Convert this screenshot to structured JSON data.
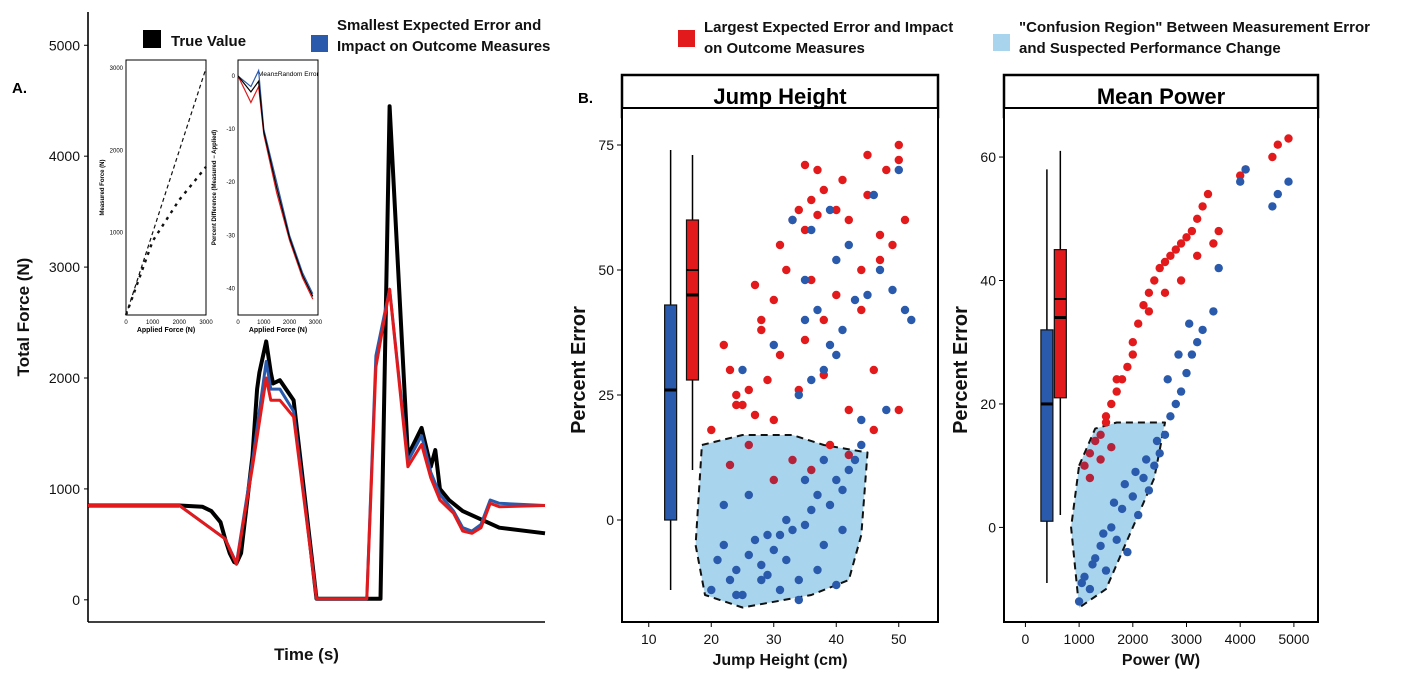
{
  "legend": {
    "items": [
      {
        "label_line1": "True Value",
        "label_line2": "",
        "color": "#000000"
      },
      {
        "label_line1": "Smallest Expected Error and",
        "label_line2": "Impact on Outcome Measures",
        "color": "#2a5aac"
      },
      {
        "label_line1": "Largest Expected Error and Impact",
        "label_line2": "on Outcome Measures",
        "color": "#e31a1c"
      },
      {
        "label_line1": "\"Confusion Region\" Between Measurement Error",
        "label_line2": "and Suspected Performance Change",
        "color": "#a8d4ee"
      }
    ]
  },
  "panel_labels": {
    "a": "A.",
    "b": "B."
  },
  "chart_data": [
    {
      "id": "force-trace",
      "type": "line",
      "xlabel": "Time (s)",
      "ylabel": "Total Force (N)",
      "ylim": [
        -200,
        5300
      ],
      "yticks": [
        0,
        1000,
        2000,
        3000,
        4000,
        5000
      ],
      "series": [
        {
          "color": "#000000",
          "x": [
            0,
            0.12,
            0.2,
            0.25,
            0.27,
            0.29,
            0.3,
            0.31,
            0.32,
            0.325,
            0.335,
            0.34,
            0.36,
            0.37,
            0.375,
            0.39,
            0.4,
            0.405,
            0.42,
            0.45,
            0.5,
            0.505,
            0.51,
            0.52,
            0.53,
            0.54,
            0.55,
            0.56,
            0.57,
            0.58,
            0.6,
            0.62,
            0.64,
            0.66,
            0.7,
            0.73,
            0.75,
            0.76,
            0.77,
            0.79,
            0.82,
            0.9,
            1.0
          ],
          "y": [
            850,
            850,
            850,
            840,
            800,
            700,
            550,
            420,
            340,
            330,
            420,
            600,
            1300,
            1900,
            2050,
            2330,
            2050,
            1950,
            1980,
            1800,
            10,
            10,
            10,
            10,
            10,
            10,
            10,
            10,
            10,
            10,
            10,
            10,
            10,
            4450,
            1300,
            1550,
            1200,
            1350,
            1000,
            900,
            800,
            650,
            600
          ]
        },
        {
          "color": "#2a5aac",
          "x": [
            0,
            0.2,
            0.3,
            0.325,
            0.36,
            0.39,
            0.4,
            0.42,
            0.45,
            0.5,
            0.61,
            0.63,
            0.66,
            0.7,
            0.73,
            0.75,
            0.77,
            0.8,
            0.82,
            0.84,
            0.86,
            0.88,
            0.9,
            1.0
          ],
          "y": [
            850,
            850,
            550,
            330,
            1250,
            2150,
            1900,
            1900,
            1700,
            10,
            10,
            2200,
            2800,
            1250,
            1480,
            1150,
            950,
            800,
            650,
            620,
            680,
            900,
            870,
            850
          ]
        },
        {
          "color": "#e31a1c",
          "x": [
            0,
            0.2,
            0.3,
            0.325,
            0.36,
            0.39,
            0.4,
            0.42,
            0.45,
            0.5,
            0.61,
            0.63,
            0.66,
            0.7,
            0.73,
            0.75,
            0.77,
            0.8,
            0.82,
            0.84,
            0.86,
            0.88,
            0.9,
            1.0
          ],
          "y": [
            850,
            850,
            550,
            320,
            1200,
            2000,
            1800,
            1800,
            1650,
            10,
            10,
            2100,
            2800,
            1200,
            1400,
            1100,
            900,
            780,
            620,
            600,
            650,
            870,
            840,
            850
          ]
        }
      ]
    },
    {
      "id": "inset-measured",
      "type": "line",
      "xlabel": "Applied Force (N)",
      "ylabel": "Measured Force (N)",
      "xlim": [
        0,
        3000
      ],
      "ylim": [
        0,
        3100
      ],
      "xticks": [
        0,
        1000,
        2000,
        3000
      ],
      "yticks": [
        1000,
        2000,
        3000
      ],
      "series": [
        {
          "style": "dashed",
          "x": [
            0,
            3000
          ],
          "y": [
            0,
            3000
          ]
        },
        {
          "style": "dashed",
          "x": [
            0,
            1000,
            1500,
            2000,
            2500,
            3000
          ],
          "y": [
            0,
            900,
            1150,
            1400,
            1600,
            1800
          ]
        }
      ]
    },
    {
      "id": "inset-percent-diff",
      "type": "line",
      "title": "Mean±Random Error",
      "xlabel": "Applied Force (N)",
      "ylabel": "Percent Difference (Measured − Applied)",
      "xlim": [
        0,
        3100
      ],
      "ylim": [
        -45,
        3
      ],
      "xticks": [
        0,
        1000,
        2000,
        3000
      ],
      "yticks": [
        0,
        -10,
        -20,
        -30,
        -40
      ],
      "series": [
        {
          "color": "#2a5aac",
          "x": [
            0,
            500,
            800,
            1000,
            1500,
            2000,
            2500,
            2900
          ],
          "y": [
            0,
            -2,
            1,
            -10,
            -20,
            -30,
            -37,
            -41
          ]
        },
        {
          "color": "#e31a1c",
          "x": [
            0,
            500,
            800,
            1000,
            1500,
            2000,
            2500,
            2900
          ],
          "y": [
            0,
            -5,
            -2,
            -11,
            -22,
            -31,
            -38,
            -42
          ]
        },
        {
          "color": "#000000",
          "x": [
            0,
            500,
            800,
            1000,
            1500,
            2000,
            2500,
            2900
          ],
          "y": [
            0,
            -3,
            -1,
            -10.5,
            -21,
            -30.5,
            -37.5,
            -41.5
          ]
        }
      ]
    },
    {
      "id": "jump-height",
      "type": "scatter",
      "title": "Jump Height",
      "xlabel": "Jump Height (cm)",
      "ylabel": "Percent Error",
      "xlim": [
        7,
        55
      ],
      "ylim": [
        -20,
        80
      ],
      "xticks": [
        10,
        20,
        30,
        40,
        50
      ],
      "yticks": [
        0,
        25,
        50,
        75
      ],
      "boxplots": [
        {
          "color": "#2a5aac",
          "x": 13.5,
          "whisker_low": -14,
          "q1": 0,
          "median": 26,
          "q3": 43,
          "whisker_high": 74
        },
        {
          "color": "#e31a1c",
          "x": 17,
          "whisker_low": 10,
          "q1": 28,
          "median": 45,
          "mean": 50,
          "q3": 60,
          "whisker_high": 73
        }
      ],
      "confusion_region": {
        "color": "#a8d4ee",
        "polygon": [
          [
            18.5,
            15
          ],
          [
            25,
            17
          ],
          [
            33,
            17
          ],
          [
            38,
            15
          ],
          [
            45,
            13.5
          ],
          [
            44,
            -3
          ],
          [
            42,
            -12
          ],
          [
            36,
            -15
          ],
          [
            25,
            -17.5
          ],
          [
            19,
            -15
          ],
          [
            17.5,
            -5
          ]
        ]
      },
      "red_points": {
        "x": [
          22,
          23,
          24,
          25,
          26,
          27,
          28,
          30,
          31,
          33,
          34,
          35,
          36,
          37,
          38,
          40,
          42,
          45,
          48,
          50,
          28,
          31,
          35,
          38,
          40,
          44,
          47,
          49,
          51,
          23,
          26,
          30,
          33,
          36,
          39,
          42,
          46,
          50,
          35,
          37,
          41,
          45,
          30,
          36,
          44,
          47,
          20,
          24,
          27,
          29,
          34,
          38,
          42,
          32,
          46,
          50
        ],
        "y": [
          35,
          30,
          25,
          23,
          26,
          47,
          40,
          44,
          55,
          60,
          62,
          58,
          64,
          61,
          66,
          62,
          60,
          65,
          70,
          72,
          38,
          33,
          36,
          40,
          45,
          50,
          52,
          55,
          60,
          11,
          15,
          8,
          12,
          10,
          15,
          13,
          18,
          22,
          71,
          70,
          68,
          73,
          20,
          48,
          42,
          57,
          18,
          23,
          21,
          28,
          26,
          29,
          22,
          50,
          30,
          75
        ]
      },
      "blue_points": {
        "x": [
          20,
          21,
          22,
          23,
          24,
          25,
          26,
          27,
          28,
          29,
          30,
          31,
          32,
          33,
          34,
          35,
          36,
          37,
          38,
          39,
          40,
          41,
          42,
          43,
          35,
          37,
          39,
          41,
          43,
          45,
          47,
          49,
          51,
          52,
          34,
          36,
          38,
          40,
          44,
          48,
          33,
          36,
          39,
          42,
          46,
          50,
          22,
          26,
          29,
          32,
          35,
          38,
          41,
          44,
          24,
          28,
          31,
          34,
          37,
          40,
          25,
          30,
          35,
          40
        ],
        "y": [
          -14,
          -8,
          -5,
          -12,
          -10,
          -15,
          -7,
          -4,
          -9,
          -11,
          -6,
          -3,
          -8,
          -2,
          -12,
          -1,
          2,
          5,
          -5,
          3,
          8,
          6,
          10,
          12,
          40,
          42,
          35,
          38,
          44,
          45,
          50,
          46,
          42,
          40,
          25,
          28,
          30,
          33,
          20,
          22,
          60,
          58,
          62,
          55,
          65,
          70,
          3,
          5,
          -3,
          0,
          8,
          12,
          -2,
          15,
          -15,
          -12,
          -14,
          -16,
          -10,
          -13,
          30,
          35,
          48,
          52
        ]
      }
    },
    {
      "id": "mean-power",
      "type": "scatter",
      "title": "Mean Power",
      "xlabel": "Power (W)",
      "ylabel": "Percent Error",
      "xlim": [
        -250,
        5300
      ],
      "ylim": [
        -15,
        66
      ],
      "xticks": [
        0,
        1000,
        2000,
        3000,
        4000,
        5000
      ],
      "yticks": [
        0,
        20,
        40,
        60
      ],
      "boxplots": [
        {
          "color": "#2a5aac",
          "x": 400,
          "whisker_low": -9,
          "q1": 1,
          "median": 20,
          "q3": 32,
          "whisker_high": 58
        },
        {
          "color": "#e31a1c",
          "x": 650,
          "whisker_low": 2,
          "q1": 21,
          "median": 34,
          "mean": 37,
          "q3": 45,
          "whisker_high": 61
        }
      ],
      "confusion_region": {
        "color": "#a8d4ee",
        "polygon": [
          [
            1000,
            10
          ],
          [
            1300,
            16
          ],
          [
            1700,
            17
          ],
          [
            2600,
            17
          ],
          [
            2400,
            8
          ],
          [
            1900,
            -2
          ],
          [
            1500,
            -10
          ],
          [
            1000,
            -13
          ],
          [
            850,
            0
          ]
        ]
      },
      "red_points": {
        "x": [
          1100,
          1200,
          1300,
          1400,
          1500,
          1600,
          1700,
          1800,
          1900,
          2000,
          2100,
          2200,
          2300,
          2400,
          2500,
          2600,
          2700,
          2800,
          2900,
          3000,
          3100,
          3200,
          3300,
          3400,
          3500,
          3600,
          4000,
          4100,
          4600,
          4700,
          4900,
          1500,
          1700,
          2000,
          2300,
          2600,
          2900,
          3200,
          1200,
          1400,
          1600
        ],
        "y": [
          10,
          12,
          14,
          15,
          17,
          20,
          22,
          24,
          26,
          30,
          33,
          36,
          38,
          40,
          42,
          43,
          44,
          45,
          46,
          47,
          48,
          50,
          52,
          54,
          46,
          48,
          57,
          58,
          60,
          62,
          63,
          18,
          24,
          28,
          35,
          38,
          40,
          44,
          8,
          11,
          13
        ]
      },
      "blue_points": {
        "x": [
          1000,
          1100,
          1200,
          1300,
          1400,
          1500,
          1600,
          1700,
          1800,
          1900,
          2000,
          2100,
          2200,
          2300,
          2400,
          2500,
          2600,
          2700,
          2800,
          2900,
          3000,
          3100,
          3200,
          3300,
          3500,
          3600,
          4000,
          4100,
          4600,
          4700,
          4900,
          1050,
          1250,
          1450,
          1650,
          1850,
          2050,
          2250,
          2450,
          2650,
          2850,
          3050
        ],
        "y": [
          -12,
          -8,
          -10,
          -5,
          -3,
          -7,
          0,
          -2,
          3,
          -4,
          5,
          2,
          8,
          6,
          10,
          12,
          15,
          18,
          20,
          22,
          25,
          28,
          30,
          32,
          35,
          42,
          56,
          58,
          52,
          54,
          56,
          -9,
          -6,
          -1,
          4,
          7,
          9,
          11,
          14,
          24,
          28,
          33
        ]
      }
    }
  ]
}
